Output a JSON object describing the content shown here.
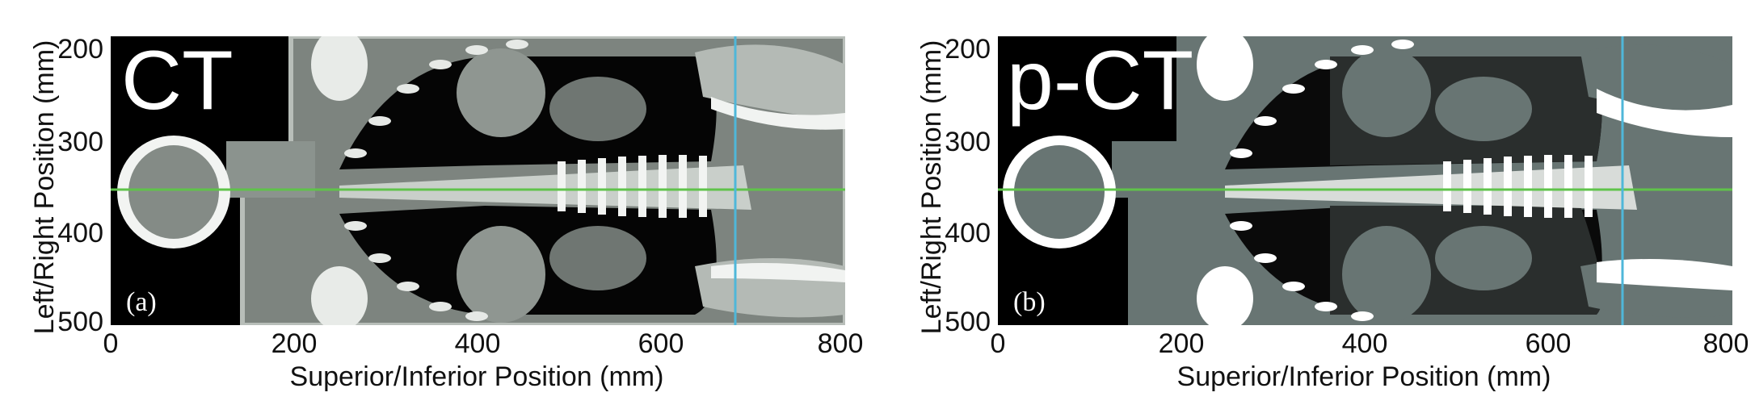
{
  "panels": [
    {
      "title": "CT",
      "tag": "(a)",
      "x_label": "Superior/Inferior Position (mm)",
      "y_label": "Left/Right Position (mm)",
      "x_ticks": [
        "0",
        "200",
        "400",
        "600",
        "800"
      ],
      "y_ticks": [
        "200",
        "300",
        "400",
        "500"
      ]
    },
    {
      "title": "p-CT",
      "tag": "(b)",
      "x_label": "Superior/Inferior Position (mm)",
      "y_label": "Left/Right Position (mm)",
      "x_ticks": [
        "0",
        "200",
        "400",
        "600",
        "800"
      ],
      "y_ticks": [
        "200",
        "300",
        "400",
        "500"
      ]
    }
  ],
  "colors": {
    "crosshair_horizontal": "#5fc34a",
    "crosshair_vertical": "#4fb7d9",
    "background": "#000000"
  }
}
